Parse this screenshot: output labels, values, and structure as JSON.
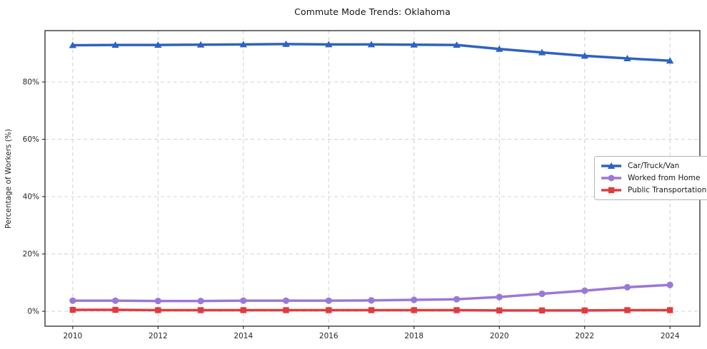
{
  "chart_data": {
    "type": "line",
    "title": "Commute Mode Trends: Oklahoma",
    "xlabel": "",
    "ylabel": "Percentage of Workers (%)",
    "x": [
      2010,
      2011,
      2012,
      2013,
      2014,
      2015,
      2016,
      2017,
      2018,
      2019,
      2020,
      2021,
      2022,
      2023,
      2024
    ],
    "series": [
      {
        "name": "Car/Truck/Van",
        "marker": "triangle",
        "color": "#2e62c2",
        "values": [
          92.8,
          92.9,
          92.9,
          93.0,
          93.1,
          93.2,
          93.1,
          93.1,
          93.0,
          92.9,
          91.5,
          90.3,
          89.1,
          88.2,
          87.4
        ]
      },
      {
        "name": "Worked from Home",
        "marker": "circle",
        "color": "#9a78d8",
        "values": [
          3.7,
          3.7,
          3.6,
          3.6,
          3.7,
          3.7,
          3.7,
          3.8,
          4.0,
          4.2,
          5.0,
          6.1,
          7.2,
          8.4,
          9.2
        ]
      },
      {
        "name": "Public Transportation",
        "marker": "square",
        "color": "#e03b3e",
        "values": [
          0.5,
          0.5,
          0.4,
          0.4,
          0.4,
          0.4,
          0.4,
          0.4,
          0.4,
          0.4,
          0.3,
          0.3,
          0.3,
          0.4,
          0.4
        ]
      }
    ],
    "xticks": {
      "values": [
        2010,
        2012,
        2014,
        2016,
        2018,
        2020,
        2022,
        2024
      ],
      "labels": [
        "2010",
        "2012",
        "2014",
        "2016",
        "2018",
        "2020",
        "2022",
        "2024"
      ]
    },
    "yticks": {
      "values": [
        0,
        20,
        40,
        60,
        80
      ],
      "labels": [
        "0%",
        "20%",
        "40%",
        "60%",
        "80%"
      ]
    },
    "xlim": [
      2009.35,
      2024.7
    ],
    "ylim": [
      -5.2,
      97.9
    ],
    "grid": true,
    "legend": {
      "position": "center right",
      "items": [
        "Car/Truck/Van",
        "Worked from Home",
        "Public Transportation"
      ]
    },
    "colors": {
      "grid": "#cccccc",
      "axis": "#262626",
      "tick_label": "#262626",
      "background": "#ffffff"
    }
  }
}
